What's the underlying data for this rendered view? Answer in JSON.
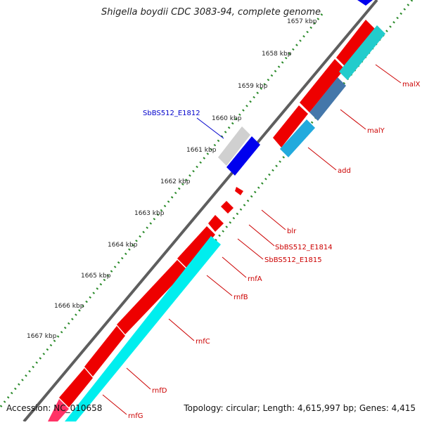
{
  "title": "Shigella boydii CDC 3083-94, complete genome",
  "footer": {
    "accession": "Accession: NC_010658",
    "topology": "Topology: circular; Length: 4,615,997 bp; Genes: 4,415"
  },
  "axis": {
    "ticks": [
      "1657 kbp",
      "1658 kbp",
      "1659 kbp",
      "1660 kbp",
      "1661 kbp",
      "1662 kbp",
      "1663 kbp",
      "1664 kbp",
      "1665 kbp",
      "1666 kbp",
      "1667 kbp"
    ]
  },
  "genes": [
    {
      "name": "malX",
      "color": "#cc0000"
    },
    {
      "name": "malY",
      "color": "#cc0000"
    },
    {
      "name": "add",
      "color": "#cc0000"
    },
    {
      "name": "SbBS512_E1812",
      "color": "#0000cc"
    },
    {
      "name": "blr",
      "color": "#cc0000"
    },
    {
      "name": "SbBS512_E1814",
      "color": "#cc0000"
    },
    {
      "name": "SbBS512_E1815",
      "color": "#cc0000"
    },
    {
      "name": "rnfA",
      "color": "#cc0000"
    },
    {
      "name": "rnfB",
      "color": "#cc0000"
    },
    {
      "name": "rnfC",
      "color": "#cc0000"
    },
    {
      "name": "rnfD",
      "color": "#cc0000"
    },
    {
      "name": "rnfG",
      "color": "#cc0000"
    }
  ],
  "colors": {
    "cds_forward": "#ff0000",
    "cds_forward_dark": "#c80000",
    "gene_forward": "#00e0e0",
    "gene_dark": "#2aa0a8",
    "gene_blue": "#0000ee",
    "gene_grey": "#c8c8c8",
    "ruler_dots": "#2a8a2a",
    "backbone": "#777777"
  }
}
